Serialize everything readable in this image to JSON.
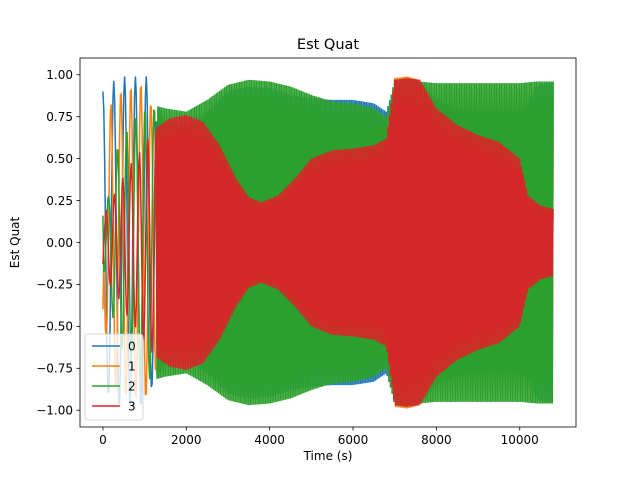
{
  "chart_data": {
    "type": "line",
    "title": "Est Quat",
    "xlabel": "Time (s)",
    "ylabel": "Est Quat",
    "xlim": [
      -550,
      11350
    ],
    "ylim": [
      -1.1,
      1.1
    ],
    "xticks": [
      0,
      2000,
      4000,
      6000,
      8000,
      10000
    ],
    "xtick_labels": [
      "0",
      "2000",
      "4000",
      "6000",
      "8000",
      "10000"
    ],
    "yticks": [
      -1.0,
      -0.75,
      -0.5,
      -0.25,
      0.0,
      0.25,
      0.5,
      0.75,
      1.0
    ],
    "ytick_labels": [
      "−1.00",
      "−0.75",
      "−0.50",
      "−0.25",
      "0.00",
      "0.25",
      "0.50",
      "0.75",
      "1.00"
    ],
    "grid": false,
    "legend": {
      "placement": "lower-left"
    },
    "x_end": 10800,
    "series": [
      {
        "name": "0",
        "color": "#1f77b4",
        "envelope": [
          [
            0,
            0.9
          ],
          [
            150,
            0.92
          ],
          [
            300,
            0.98
          ],
          [
            500,
            0.99
          ],
          [
            700,
            0.99
          ],
          [
            900,
            0.99
          ],
          [
            1050,
            0.99
          ],
          [
            1200,
            0.85
          ],
          [
            1500,
            0.72
          ],
          [
            2000,
            0.7
          ],
          [
            2500,
            0.78
          ],
          [
            3000,
            0.9
          ],
          [
            3500,
            0.93
          ],
          [
            4000,
            0.92
          ],
          [
            4500,
            0.88
          ],
          [
            5000,
            0.86
          ],
          [
            5500,
            0.85
          ],
          [
            6000,
            0.85
          ],
          [
            6500,
            0.83
          ],
          [
            6800,
            0.78
          ],
          [
            7000,
            0.95
          ],
          [
            7300,
            0.97
          ],
          [
            7600,
            0.96
          ],
          [
            8000,
            0.85
          ],
          [
            8500,
            0.8
          ],
          [
            9000,
            0.78
          ],
          [
            9500,
            0.76
          ],
          [
            10000,
            0.75
          ],
          [
            10200,
            0.82
          ],
          [
            10400,
            0.93
          ],
          [
            10600,
            0.95
          ],
          [
            10800,
            0.96
          ]
        ]
      },
      {
        "name": "1",
        "color": "#ff7f0e",
        "envelope": [
          [
            0,
            0.4
          ],
          [
            200,
            0.85
          ],
          [
            400,
            0.91
          ],
          [
            600,
            0.93
          ],
          [
            800,
            0.95
          ],
          [
            1000,
            0.96
          ],
          [
            1200,
            0.8
          ],
          [
            1500,
            0.72
          ],
          [
            2000,
            0.65
          ],
          [
            2500,
            0.62
          ],
          [
            3000,
            0.55
          ],
          [
            3500,
            0.5
          ],
          [
            4000,
            0.52
          ],
          [
            4500,
            0.58
          ],
          [
            5000,
            0.62
          ],
          [
            5500,
            0.64
          ],
          [
            6000,
            0.65
          ],
          [
            6500,
            0.67
          ],
          [
            6800,
            0.7
          ],
          [
            7000,
            0.98
          ],
          [
            7300,
            0.99
          ],
          [
            7600,
            0.97
          ],
          [
            8000,
            0.85
          ],
          [
            8500,
            0.72
          ],
          [
            9000,
            0.68
          ],
          [
            9500,
            0.66
          ],
          [
            10000,
            0.62
          ],
          [
            10400,
            0.62
          ],
          [
            10800,
            0.62
          ]
        ]
      },
      {
        "name": "2",
        "color": "#2ca02c",
        "envelope": [
          [
            0,
            0.16
          ],
          [
            150,
            0.3
          ],
          [
            300,
            0.55
          ],
          [
            600,
            0.7
          ],
          [
            900,
            0.8
          ],
          [
            1200,
            0.82
          ],
          [
            1500,
            0.8
          ],
          [
            2000,
            0.78
          ],
          [
            2500,
            0.85
          ],
          [
            3000,
            0.94
          ],
          [
            3500,
            0.97
          ],
          [
            4000,
            0.96
          ],
          [
            4500,
            0.93
          ],
          [
            5000,
            0.88
          ],
          [
            5500,
            0.84
          ],
          [
            6000,
            0.83
          ],
          [
            6500,
            0.8
          ],
          [
            6800,
            0.75
          ],
          [
            7000,
            0.97
          ],
          [
            7300,
            0.98
          ],
          [
            7600,
            0.96
          ],
          [
            8000,
            0.95
          ],
          [
            8500,
            0.95
          ],
          [
            9000,
            0.95
          ],
          [
            9500,
            0.95
          ],
          [
            10000,
            0.95
          ],
          [
            10400,
            0.96
          ],
          [
            10800,
            0.96
          ]
        ]
      },
      {
        "name": "3",
        "color": "#d62728",
        "envelope": [
          [
            0,
            0.13
          ],
          [
            150,
            0.25
          ],
          [
            300,
            0.3
          ],
          [
            600,
            0.45
          ],
          [
            900,
            0.55
          ],
          [
            1200,
            0.67
          ],
          [
            1600,
            0.74
          ],
          [
            2000,
            0.76
          ],
          [
            2400,
            0.72
          ],
          [
            2800,
            0.58
          ],
          [
            3200,
            0.38
          ],
          [
            3500,
            0.27
          ],
          [
            3800,
            0.24
          ],
          [
            4200,
            0.28
          ],
          [
            4600,
            0.38
          ],
          [
            5000,
            0.5
          ],
          [
            5500,
            0.55
          ],
          [
            6000,
            0.56
          ],
          [
            6500,
            0.58
          ],
          [
            6800,
            0.62
          ],
          [
            7000,
            0.97
          ],
          [
            7300,
            0.98
          ],
          [
            7600,
            0.97
          ],
          [
            8000,
            0.8
          ],
          [
            8500,
            0.7
          ],
          [
            9000,
            0.64
          ],
          [
            9500,
            0.6
          ],
          [
            10000,
            0.5
          ],
          [
            10200,
            0.28
          ],
          [
            10500,
            0.22
          ],
          [
            10800,
            0.2
          ]
        ]
      }
    ]
  }
}
